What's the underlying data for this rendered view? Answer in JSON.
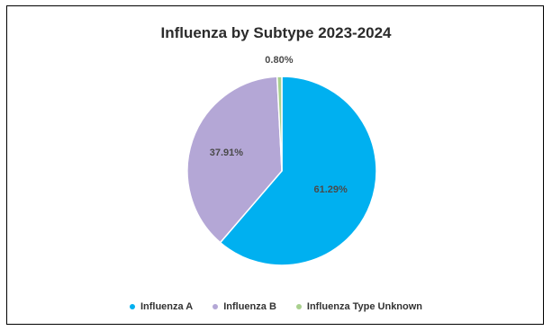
{
  "chart_data": {
    "type": "pie",
    "title": "Influenza by Subtype 2023-2024",
    "categories": [
      "Influenza A",
      "Influenza B",
      "Influenza Type Unknown"
    ],
    "values": [
      61.29,
      37.91,
      0.8
    ],
    "data_labels": [
      "61.29%",
      "37.91%",
      "0.80%"
    ],
    "colors": [
      "#00b0f0",
      "#b4a7d6",
      "#a9d08e"
    ],
    "legend_position": "bottom"
  }
}
